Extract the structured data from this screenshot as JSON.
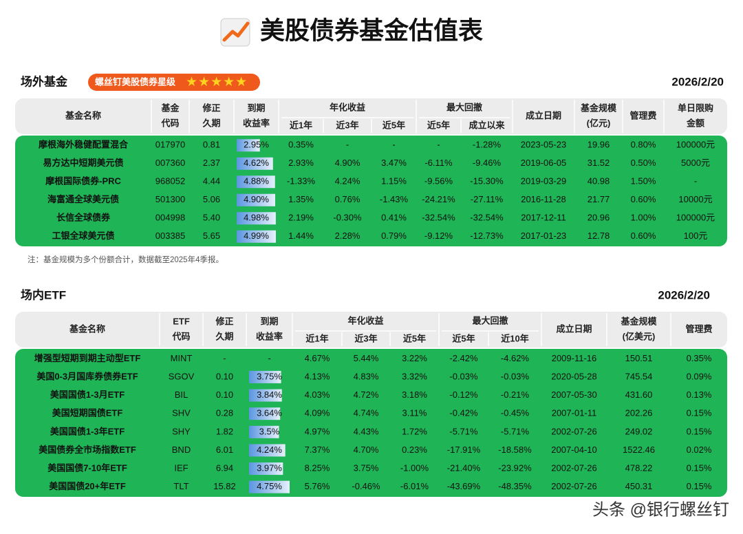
{
  "title": "美股债券基金估值表",
  "sections": [
    {
      "label": "场外基金",
      "badge": "螺丝钉美股债券星级",
      "date": "2026/2/20",
      "table": {
        "columns": [
          {
            "lines": [
              "基金名称"
            ]
          },
          {
            "lines": [
              "基金",
              "代码"
            ]
          },
          {
            "lines": [
              "修正",
              "久期"
            ]
          },
          {
            "lines": [
              "到期",
              "收益率"
            ]
          },
          {
            "group": "年化收益",
            "sub": [
              "近1年",
              "近3年",
              "近5年"
            ]
          },
          {
            "group": "最大回撤",
            "sub": [
              "近5年",
              "成立以来"
            ]
          },
          {
            "lines": [
              "成立日期"
            ]
          },
          {
            "lines": [
              "基金规模",
              "(亿元)"
            ]
          },
          {
            "lines": [
              "管理费"
            ]
          },
          {
            "lines": [
              "单日限购",
              "金额"
            ]
          }
        ],
        "rows": [
          [
            "摩根海外稳健配置混合",
            "017970",
            "0.81",
            "2.95%",
            "0.35%",
            "-",
            "-",
            "-",
            "-1.28%",
            "2023-05-23",
            "19.96",
            "0.80%",
            "100000元"
          ],
          [
            "易方达中短期美元债",
            "007360",
            "2.37",
            "4.62%",
            "2.93%",
            "4.90%",
            "3.47%",
            "-6.11%",
            "-9.46%",
            "2019-06-05",
            "31.52",
            "0.50%",
            "5000元"
          ],
          [
            "摩根国际债券-PRC",
            "968052",
            "4.44",
            "4.88%",
            "-1.33%",
            "4.24%",
            "1.15%",
            "-9.56%",
            "-15.30%",
            "2019-03-29",
            "40.98",
            "1.50%",
            "-"
          ],
          [
            "海富通全球美元债",
            "501300",
            "5.06",
            "4.90%",
            "1.35%",
            "0.76%",
            "-1.43%",
            "-24.21%",
            "-27.11%",
            "2016-11-28",
            "21.77",
            "0.60%",
            "10000元"
          ],
          [
            "长信全球债券",
            "004998",
            "5.40",
            "4.98%",
            "2.19%",
            "-0.30%",
            "0.41%",
            "-32.54%",
            "-32.54%",
            "2017-12-11",
            "20.96",
            "1.00%",
            "100000元"
          ],
          [
            "工银全球美元债",
            "003385",
            "5.65",
            "4.99%",
            "1.44%",
            "2.28%",
            "0.79%",
            "-9.12%",
            "-12.73%",
            "2017-01-23",
            "12.78",
            "0.60%",
            "100元"
          ]
        ]
      },
      "note": "注：基金规模为多个份额合计，数据截至2025年4季报。"
    },
    {
      "label": "场内ETF",
      "date": "2026/2/20",
      "table": {
        "columns": [
          {
            "lines": [
              "基金名称"
            ]
          },
          {
            "lines": [
              "ETF",
              "代码"
            ]
          },
          {
            "lines": [
              "修正",
              "久期"
            ]
          },
          {
            "lines": [
              "到期",
              "收益率"
            ]
          },
          {
            "group": "年化收益",
            "sub": [
              "近1年",
              "近3年",
              "近5年"
            ]
          },
          {
            "group": "最大回撤",
            "sub": [
              "近5年",
              "近10年"
            ]
          },
          {
            "lines": [
              "成立日期"
            ]
          },
          {
            "lines": [
              "基金规模",
              "(亿美元)"
            ]
          },
          {
            "lines": [
              "管理费"
            ]
          }
        ],
        "rows": [
          [
            "增强型短期到期主动型ETF",
            "MINT",
            "-",
            "-",
            "4.67%",
            "5.44%",
            "3.22%",
            "-2.42%",
            "-4.62%",
            "2009-11-16",
            "150.51",
            "0.35%"
          ],
          [
            "美国0-3月国库券债券ETF",
            "SGOV",
            "0.10",
            "3.75%",
            "4.13%",
            "4.83%",
            "3.32%",
            "-0.03%",
            "-0.03%",
            "2020-05-28",
            "745.54",
            "0.09%"
          ],
          [
            "美国国债1-3月ETF",
            "BIL",
            "0.10",
            "3.84%",
            "4.03%",
            "4.72%",
            "3.18%",
            "-0.12%",
            "-0.21%",
            "2007-05-30",
            "431.60",
            "0.13%"
          ],
          [
            "美国短期国债ETF",
            "SHV",
            "0.28",
            "3.64%",
            "4.09%",
            "4.74%",
            "3.11%",
            "-0.42%",
            "-0.45%",
            "2007-01-11",
            "202.26",
            "0.15%"
          ],
          [
            "美国国债1-3年ETF",
            "SHY",
            "1.82",
            "3.5%",
            "4.97%",
            "4.43%",
            "1.72%",
            "-5.71%",
            "-5.71%",
            "2002-07-26",
            "249.02",
            "0.15%"
          ],
          [
            "美国债券全市场指数ETF",
            "BND",
            "6.01",
            "4.24%",
            "7.37%",
            "4.70%",
            "0.23%",
            "-17.91%",
            "-18.58%",
            "2007-04-10",
            "1522.46",
            "0.02%"
          ],
          [
            "美国国债7-10年ETF",
            "IEF",
            "6.94",
            "3.97%",
            "8.25%",
            "3.75%",
            "-1.00%",
            "-21.40%",
            "-23.92%",
            "2002-07-26",
            "478.22",
            "0.15%"
          ],
          [
            "美国国债20+年ETF",
            "TLT",
            "15.82",
            "4.75%",
            "5.76%",
            "-0.46%",
            "-6.01%",
            "-43.69%",
            "-48.35%",
            "2002-07-26",
            "450.31",
            "0.15%"
          ]
        ]
      }
    }
  ],
  "watermark": "头条 @银行螺丝钉"
}
